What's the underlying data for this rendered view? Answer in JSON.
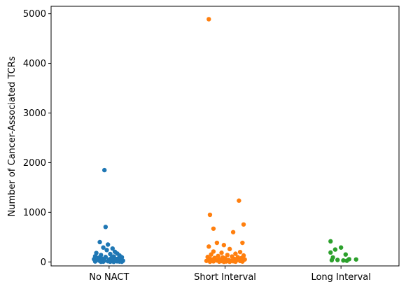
{
  "chart_data": {
    "type": "scatter",
    "xlabel": "",
    "ylabel": "Number of Cancer-Associated TCRs",
    "categories": [
      "No NACT",
      "Short Interval",
      "Long Interval"
    ],
    "ylim": [
      -80,
      5150
    ],
    "yticks": [
      0,
      1000,
      2000,
      3000,
      4000,
      5000
    ],
    "grid": false,
    "series": [
      {
        "color": "#1f77b4",
        "points": [
          {
            "x": -0.04,
            "y": 1850
          },
          {
            "x": -0.03,
            "y": 705
          },
          {
            "x": -0.08,
            "y": 400
          },
          {
            "x": -0.01,
            "y": 350
          },
          {
            "x": -0.05,
            "y": 290
          },
          {
            "x": 0.03,
            "y": 270
          },
          {
            "x": -0.02,
            "y": 240
          },
          {
            "x": 0.05,
            "y": 205
          },
          {
            "x": -0.11,
            "y": 180
          },
          {
            "x": 0.07,
            "y": 170
          },
          {
            "x": 0.01,
            "y": 160
          },
          {
            "x": -0.07,
            "y": 140
          },
          {
            "x": 0.09,
            "y": 130
          },
          {
            "x": -0.12,
            "y": 115
          },
          {
            "x": 0.04,
            "y": 110
          },
          {
            "x": -0.03,
            "y": 100
          },
          {
            "x": 0.11,
            "y": 95
          },
          {
            "x": -0.09,
            "y": 85
          },
          {
            "x": 0.02,
            "y": 80
          },
          {
            "x": 0.08,
            "y": 70
          },
          {
            "x": -0.06,
            "y": 65
          },
          {
            "x": 0.06,
            "y": 60
          },
          {
            "x": -0.13,
            "y": 55
          },
          {
            "x": 0.0,
            "y": 50
          },
          {
            "x": 0.1,
            "y": 45
          },
          {
            "x": -0.1,
            "y": 40
          },
          {
            "x": 0.05,
            "y": 35
          },
          {
            "x": -0.04,
            "y": 30
          },
          {
            "x": 0.12,
            "y": 25
          },
          {
            "x": -0.08,
            "y": 20
          },
          {
            "x": 0.03,
            "y": 18
          },
          {
            "x": -0.01,
            "y": 15
          },
          {
            "x": 0.07,
            "y": 12
          },
          {
            "x": -0.12,
            "y": 10
          },
          {
            "x": 0.09,
            "y": 8
          },
          {
            "x": -0.05,
            "y": 6
          },
          {
            "x": 0.01,
            "y": 5
          },
          {
            "x": 0.11,
            "y": 4
          },
          {
            "x": -0.07,
            "y": 3
          },
          {
            "x": 0.04,
            "y": 2
          }
        ]
      },
      {
        "color": "#ff7f0e",
        "points": [
          {
            "x": -0.14,
            "y": 4890
          },
          {
            "x": 0.12,
            "y": 1235
          },
          {
            "x": -0.13,
            "y": 950
          },
          {
            "x": 0.16,
            "y": 755
          },
          {
            "x": -0.1,
            "y": 670
          },
          {
            "x": 0.07,
            "y": 600
          },
          {
            "x": -0.07,
            "y": 385
          },
          {
            "x": 0.15,
            "y": 385
          },
          {
            "x": -0.01,
            "y": 340
          },
          {
            "x": -0.14,
            "y": 310
          },
          {
            "x": 0.04,
            "y": 260
          },
          {
            "x": -0.1,
            "y": 210
          },
          {
            "x": 0.13,
            "y": 200
          },
          {
            "x": -0.03,
            "y": 185
          },
          {
            "x": 0.09,
            "y": 165
          },
          {
            "x": -0.12,
            "y": 150
          },
          {
            "x": 0.02,
            "y": 140
          },
          {
            "x": 0.16,
            "y": 130
          },
          {
            "x": -0.06,
            "y": 120
          },
          {
            "x": 0.06,
            "y": 110
          },
          {
            "x": -0.15,
            "y": 100
          },
          {
            "x": 0.11,
            "y": 95
          },
          {
            "x": -0.02,
            "y": 90
          },
          {
            "x": -0.09,
            "y": 80
          },
          {
            "x": 0.14,
            "y": 75
          },
          {
            "x": 0.0,
            "y": 70
          },
          {
            "x": -0.13,
            "y": 65
          },
          {
            "x": 0.08,
            "y": 60
          },
          {
            "x": -0.05,
            "y": 55
          },
          {
            "x": 0.17,
            "y": 50
          },
          {
            "x": -0.11,
            "y": 45
          },
          {
            "x": 0.03,
            "y": 40
          },
          {
            "x": 0.1,
            "y": 35
          },
          {
            "x": -0.07,
            "y": 30
          },
          {
            "x": 0.05,
            "y": 25
          },
          {
            "x": -0.16,
            "y": 22
          },
          {
            "x": 0.13,
            "y": 20
          },
          {
            "x": -0.03,
            "y": 18
          },
          {
            "x": 0.07,
            "y": 15
          },
          {
            "x": -0.1,
            "y": 12
          },
          {
            "x": 0.01,
            "y": 10
          },
          {
            "x": 0.15,
            "y": 8
          },
          {
            "x": -0.05,
            "y": 6
          },
          {
            "x": 0.09,
            "y": 5
          },
          {
            "x": -0.13,
            "y": 4
          },
          {
            "x": 0.04,
            "y": 3
          },
          {
            "x": -0.01,
            "y": 2
          }
        ]
      },
      {
        "color": "#2ca02c",
        "points": [
          {
            "x": -0.09,
            "y": 415
          },
          {
            "x": 0.0,
            "y": 290
          },
          {
            "x": -0.05,
            "y": 250
          },
          {
            "x": -0.09,
            "y": 190
          },
          {
            "x": 0.04,
            "y": 150
          },
          {
            "x": -0.07,
            "y": 90
          },
          {
            "x": 0.07,
            "y": 55
          },
          {
            "x": 0.13,
            "y": 50
          },
          {
            "x": -0.03,
            "y": 40
          },
          {
            "x": -0.08,
            "y": 35
          },
          {
            "x": 0.02,
            "y": 30
          },
          {
            "x": 0.05,
            "y": 25
          }
        ]
      }
    ]
  }
}
